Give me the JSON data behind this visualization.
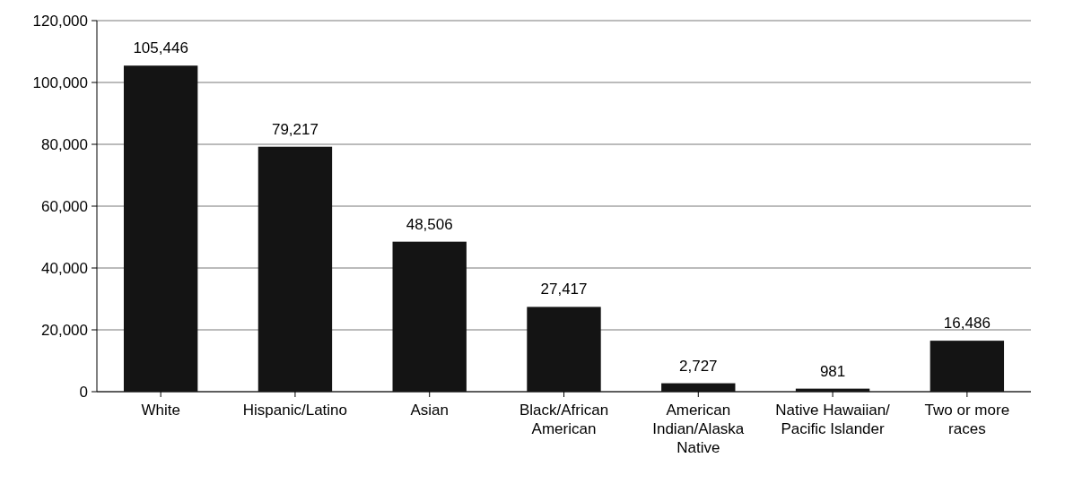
{
  "chart_data": {
    "type": "bar",
    "categories": [
      "White",
      "Hispanic/Latino",
      "Asian",
      "Black/African American",
      "American Indian/Alaska Native",
      "Native Hawaiian/ Pacific Islander",
      "Two or more races"
    ],
    "values": [
      105446,
      79217,
      48506,
      27417,
      2727,
      981,
      16486
    ],
    "color": "#141414",
    "ylim": [
      0,
      120000
    ],
    "yticks": [
      {
        "value": 0,
        "label": "0"
      },
      {
        "value": 20000,
        "label": "20,000"
      },
      {
        "value": 40000,
        "label": "40,000"
      },
      {
        "value": 60000,
        "label": "60,000"
      },
      {
        "value": 80000,
        "label": "80,000"
      },
      {
        "value": 100000,
        "label": "100,000"
      },
      {
        "value": 120000,
        "label": "120,000"
      }
    ],
    "grid": "y",
    "value_labels": [
      "105,446",
      "79,217",
      "48,506",
      "27,417",
      "2,727",
      "981",
      "16,486"
    ]
  }
}
